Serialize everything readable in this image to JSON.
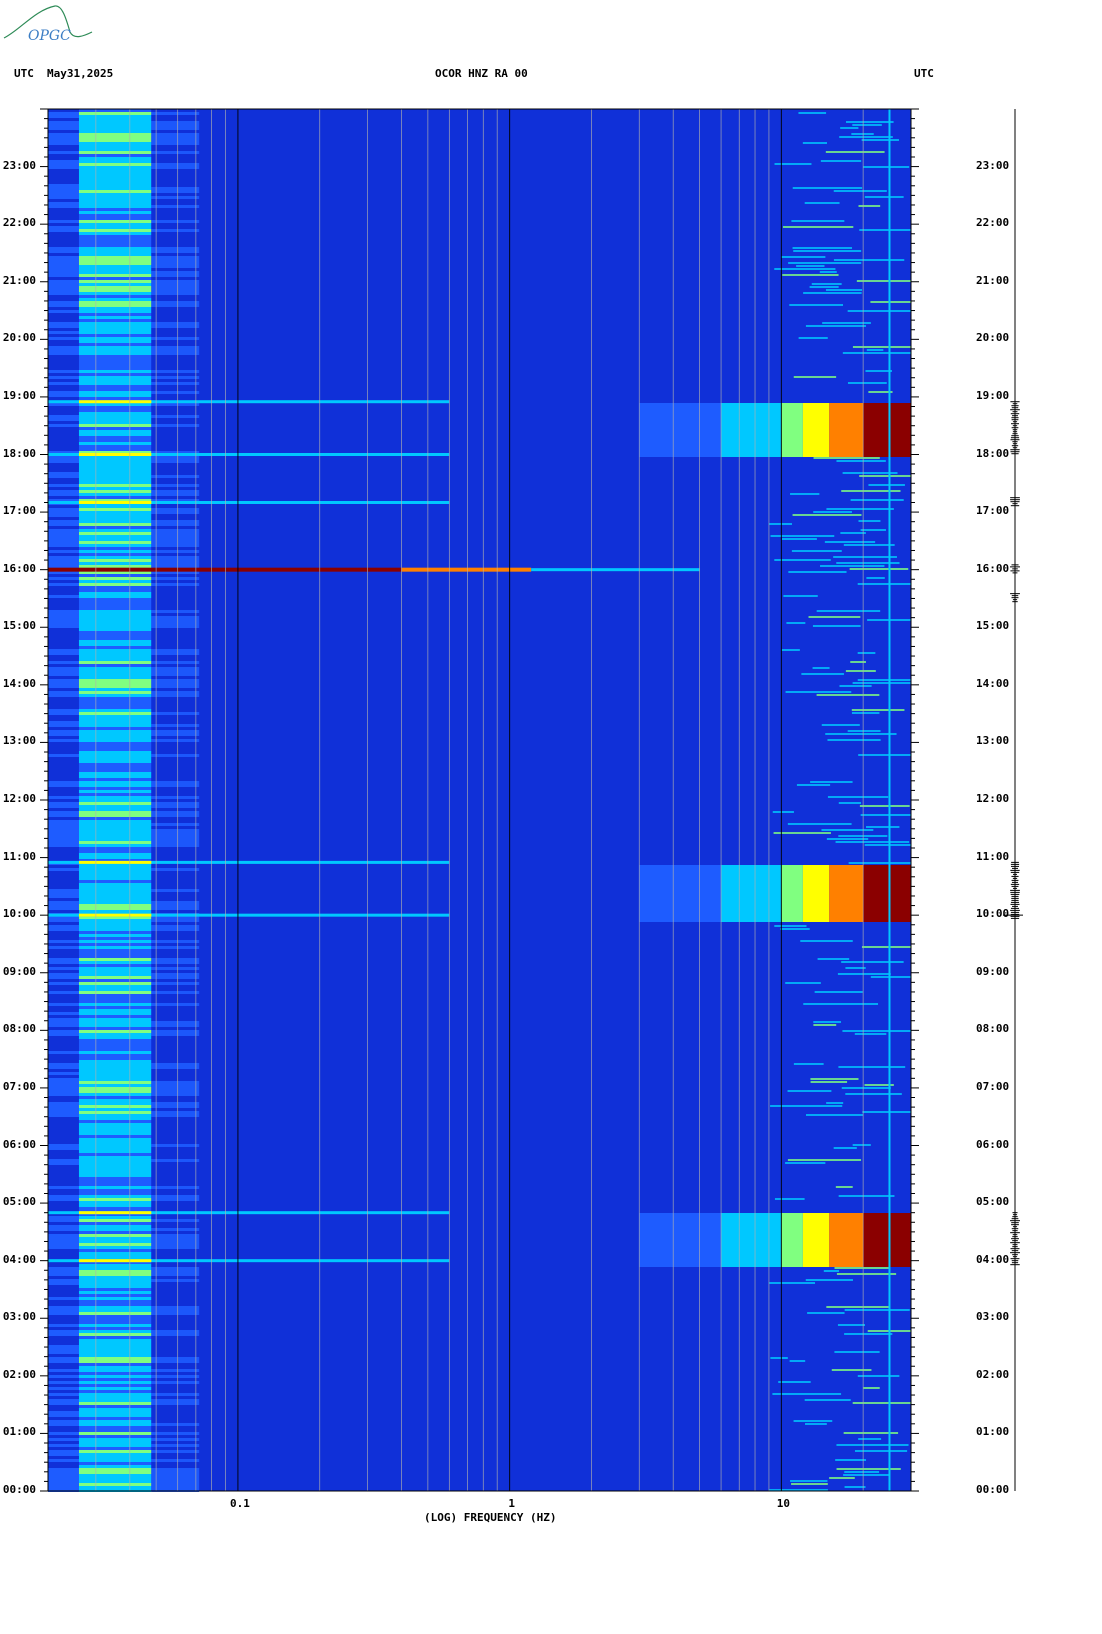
{
  "logo": {
    "text": "OPGC",
    "color": "#2e8b57"
  },
  "header": {
    "left_tz": "UTC",
    "date": "May31,2025",
    "station": "OCOR HNZ RA 00",
    "right_tz": "UTC"
  },
  "chart_data": {
    "type": "heatmap",
    "title": "OCOR HNZ RA 00",
    "xlabel": "(LOG) FREQUENCY (HZ)",
    "xscale": "log",
    "xlim": [
      0.02,
      30
    ],
    "x_tick_labels": [
      "0.1",
      "1",
      "10"
    ],
    "x_tick_values": [
      0.1,
      1,
      10
    ],
    "ylim_hours": [
      0,
      24
    ],
    "y_tick_labels": [
      "00:00",
      "01:00",
      "02:00",
      "03:00",
      "04:00",
      "05:00",
      "06:00",
      "07:00",
      "08:00",
      "09:00",
      "10:00",
      "11:00",
      "12:00",
      "13:00",
      "14:00",
      "15:00",
      "16:00",
      "17:00",
      "18:00",
      "19:00",
      "20:00",
      "21:00",
      "22:00",
      "23:00"
    ],
    "colormap": [
      "#1010a0",
      "#1030d8",
      "#1e5cff",
      "#00c8ff",
      "#80ff80",
      "#ffff00",
      "#ff8000",
      "#c00000",
      "#8b0000"
    ],
    "high_energy_bands_utc": [
      {
        "start": "03:55",
        "end": "04:50",
        "freq_min_hz": 5,
        "freq_max_hz": 30
      },
      {
        "start": "09:55",
        "end": "10:55",
        "freq_min_hz": 5,
        "freq_max_hz": 30
      },
      {
        "start": "18:00",
        "end": "18:55",
        "freq_min_hz": 5,
        "freq_max_hz": 30
      }
    ],
    "broadband_events_utc": [
      "04:00",
      "04:50",
      "10:00",
      "10:55",
      "16:00",
      "17:10",
      "18:00",
      "18:55"
    ],
    "strongest_event_utc": "16:00",
    "persistent_line_hz": 25
  }
}
